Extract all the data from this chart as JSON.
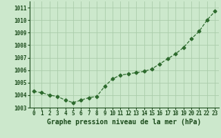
{
  "x": [
    0,
    1,
    2,
    3,
    4,
    5,
    6,
    7,
    8,
    9,
    10,
    11,
    12,
    13,
    14,
    15,
    16,
    17,
    18,
    19,
    20,
    21,
    22,
    23
  ],
  "y": [
    1004.3,
    1004.2,
    1004.0,
    1003.9,
    1003.6,
    1003.4,
    1003.6,
    1003.8,
    1003.9,
    1004.7,
    1005.3,
    1005.6,
    1005.7,
    1005.8,
    1005.9,
    1006.1,
    1006.5,
    1006.9,
    1007.3,
    1007.8,
    1008.5,
    1009.1,
    1010.0,
    1010.7
  ],
  "line_color": "#2d6a2d",
  "marker": "D",
  "markersize": 2.5,
  "linewidth": 0.9,
  "bg_color": "#cce8cc",
  "plot_bg_color": "#cce8cc",
  "grid_color": "#aaccaa",
  "xlabel": "Graphe pression niveau de la mer (hPa)",
  "xlabel_color": "#1a4a1a",
  "xlabel_fontsize": 7,
  "ylim": [
    1003.0,
    1011.5
  ],
  "xlim": [
    -0.5,
    23.5
  ],
  "yticks": [
    1003,
    1004,
    1005,
    1006,
    1007,
    1008,
    1009,
    1010,
    1011
  ],
  "xticks": [
    0,
    1,
    2,
    3,
    4,
    5,
    6,
    7,
    8,
    9,
    10,
    11,
    12,
    13,
    14,
    15,
    16,
    17,
    18,
    19,
    20,
    21,
    22,
    23
  ],
  "tick_fontsize": 5.5,
  "tick_color": "#1a4a1a"
}
